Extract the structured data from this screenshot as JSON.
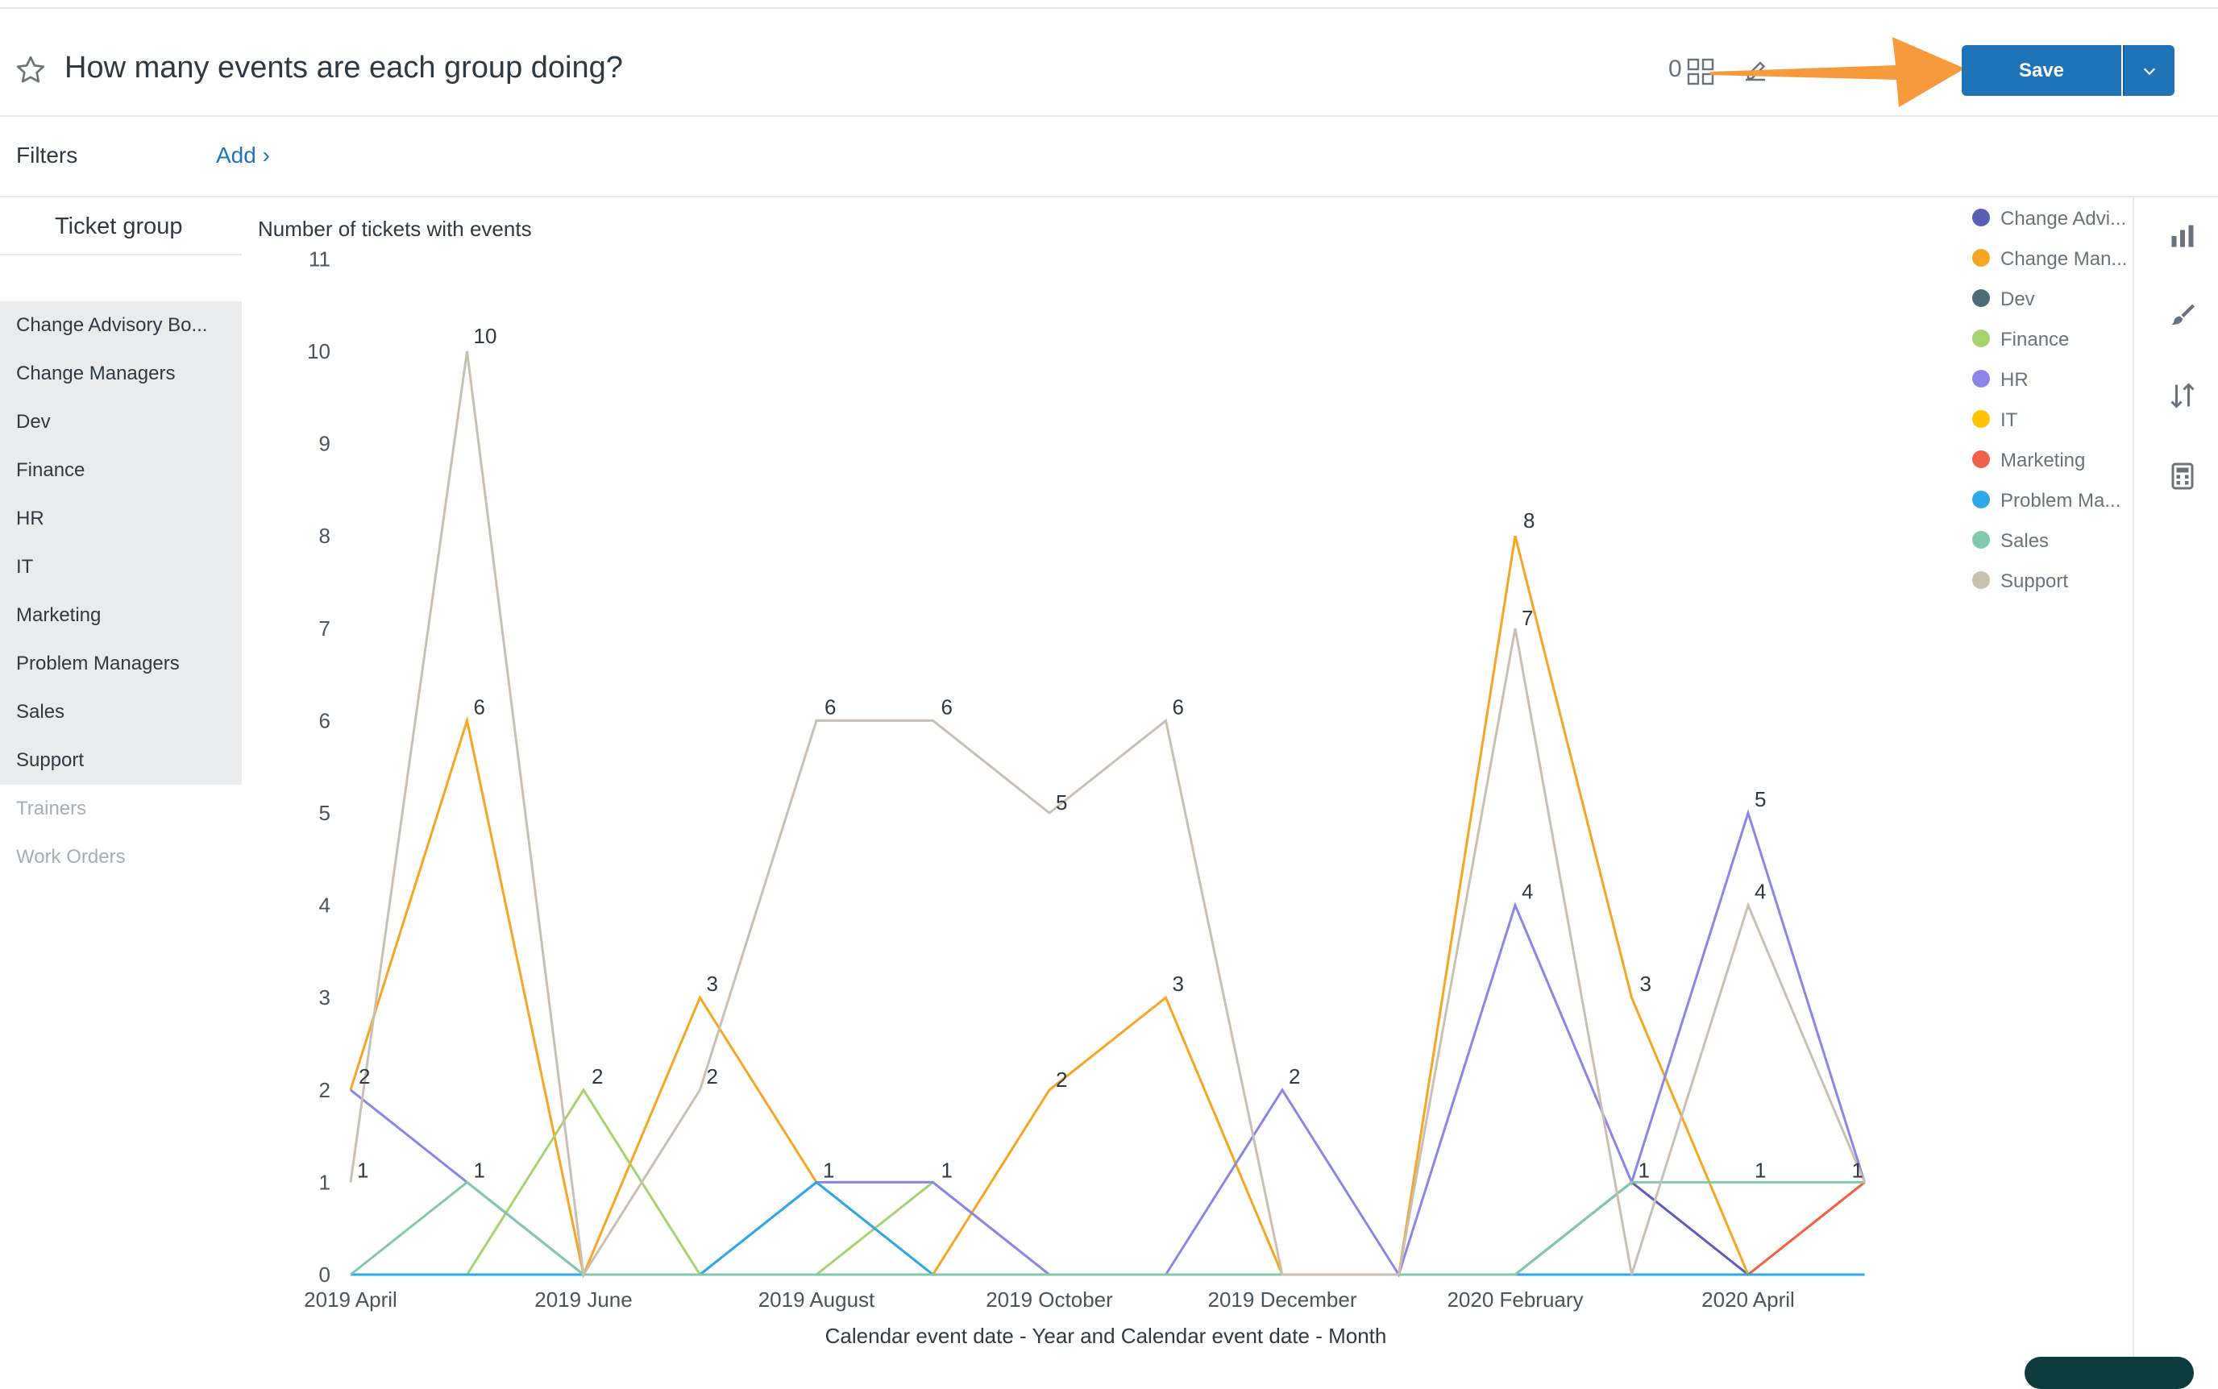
{
  "header": {
    "title": "How many events are each group doing?",
    "count": "0",
    "save_label": "Save"
  },
  "filters": {
    "label": "Filters",
    "add_label": "Add ›"
  },
  "groups": {
    "header": "Ticket group",
    "active": [
      "Change Advisory Bo...",
      "Change Managers",
      "Dev",
      "Finance",
      "HR",
      "IT",
      "Marketing",
      "Problem Managers",
      "Sales",
      "Support"
    ],
    "inactive": [
      "Trainers",
      "Work Orders"
    ]
  },
  "icons": {
    "star": "star-icon",
    "grid": "grid-icon",
    "edit": "edit-icon",
    "chart": "bar-chart-icon",
    "brush": "brush-icon",
    "sort": "sort-icon",
    "calc": "calculator-icon"
  },
  "colors": {
    "primary": "#1f73b7",
    "arrow": "#f79a3e"
  },
  "chart_data": {
    "type": "line",
    "ylabel": "Number of tickets with events",
    "xlabel": "Calendar event date - Year and Calendar event date - Month",
    "ylim": [
      0,
      11
    ],
    "yticks": [
      "0",
      "1",
      "2",
      "3",
      "4",
      "5",
      "6",
      "7",
      "8",
      "9",
      "10",
      "11"
    ],
    "x_tick_labels": [
      "2019 April",
      "2019 June",
      "2019 August",
      "2019 October",
      "2019 December",
      "2020 February",
      "2020 April"
    ],
    "x": [
      "2019 April",
      "2019 May",
      "2019 June",
      "2019 July",
      "2019 August",
      "2019 September",
      "2019 October",
      "2019 November",
      "2019 December",
      "2020 January",
      "2020 February",
      "2020 March",
      "2020 April",
      "2020 May"
    ],
    "legend_position": "right",
    "series": [
      {
        "name": "Change Advi...",
        "color": "#5a5fb5",
        "values": [
          0,
          0,
          0,
          0,
          0,
          0,
          0,
          0,
          0,
          0,
          0,
          1,
          0,
          0
        ]
      },
      {
        "name": "Change Man...",
        "color": "#f5a623",
        "values": [
          2,
          6,
          0,
          3,
          1,
          0,
          2,
          3,
          0,
          0,
          8,
          3,
          0,
          1
        ]
      },
      {
        "name": "Dev",
        "color": "#4d6b72",
        "values": [
          0,
          0,
          0,
          0,
          0,
          0,
          0,
          0,
          0,
          0,
          0,
          0,
          0,
          0
        ]
      },
      {
        "name": "Finance",
        "color": "#a5d36f",
        "values": [
          0,
          0,
          2,
          0,
          0,
          1,
          0,
          0,
          0,
          0,
          0,
          0,
          0,
          0
        ]
      },
      {
        "name": "HR",
        "color": "#8b86e6",
        "values": [
          2,
          1,
          0,
          0,
          1,
          1,
          0,
          0,
          2,
          0,
          4,
          1,
          5,
          1
        ]
      },
      {
        "name": "IT",
        "color": "#ffc400",
        "values": [
          0,
          0,
          0,
          0,
          0,
          0,
          0,
          0,
          0,
          0,
          0,
          0,
          0,
          0
        ]
      },
      {
        "name": "Marketing",
        "color": "#f0604c",
        "values": [
          0,
          0,
          0,
          0,
          0,
          0,
          0,
          0,
          0,
          0,
          0,
          0,
          0,
          1
        ]
      },
      {
        "name": "Problem Ma...",
        "color": "#2ea8e8",
        "values": [
          0,
          0,
          0,
          0,
          1,
          0,
          0,
          0,
          0,
          0,
          0,
          0,
          0,
          0
        ]
      },
      {
        "name": "Sales",
        "color": "#82c9a9",
        "values": [
          0,
          1,
          0,
          0,
          0,
          0,
          0,
          0,
          0,
          0,
          0,
          1,
          1,
          1
        ]
      },
      {
        "name": "Support",
        "color": "#c9c0b3",
        "values": [
          1,
          10,
          0,
          2,
          6,
          6,
          5,
          6,
          0,
          0,
          7,
          0,
          4,
          1
        ]
      }
    ],
    "data_labels": [
      {
        "x": "2019 April",
        "value": "2"
      },
      {
        "x": "2019 April",
        "value": "1"
      },
      {
        "x": "2019 May",
        "value": "10"
      },
      {
        "x": "2019 May",
        "value": "6"
      },
      {
        "x": "2019 May",
        "value": "1"
      },
      {
        "x": "2019 June",
        "value": "2"
      },
      {
        "x": "2019 July",
        "value": "3"
      },
      {
        "x": "2019 July",
        "value": "2"
      },
      {
        "x": "2019 August",
        "value": "6"
      },
      {
        "x": "2019 August",
        "value": "1"
      },
      {
        "x": "2019 September",
        "value": "6"
      },
      {
        "x": "2019 September",
        "value": "1"
      },
      {
        "x": "2019 October",
        "value": "5"
      },
      {
        "x": "2019 October",
        "value": "2"
      },
      {
        "x": "2019 November",
        "value": "6"
      },
      {
        "x": "2019 November",
        "value": "3"
      },
      {
        "x": "2019 December",
        "value": "2"
      },
      {
        "x": "2020 February",
        "value": "8"
      },
      {
        "x": "2020 February",
        "value": "7"
      },
      {
        "x": "2020 February",
        "value": "4"
      },
      {
        "x": "2020 March",
        "value": "3"
      },
      {
        "x": "2020 March",
        "value": "1"
      },
      {
        "x": "2020 April",
        "value": "5"
      },
      {
        "x": "2020 April",
        "value": "4"
      },
      {
        "x": "2020 April",
        "value": "1"
      },
      {
        "x": "2020 May",
        "value": "1"
      }
    ]
  }
}
